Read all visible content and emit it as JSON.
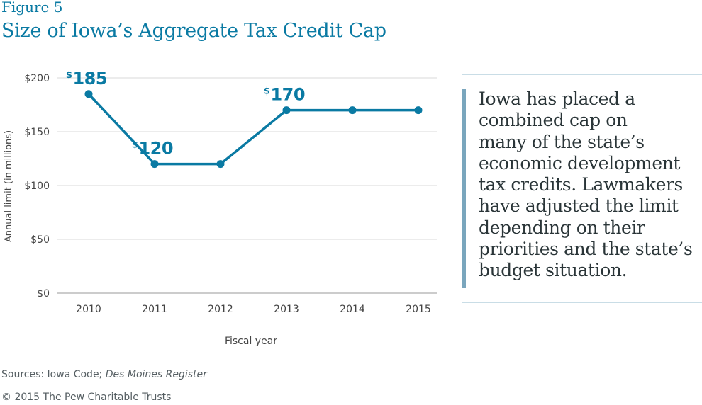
{
  "figure_label": "Figure 5",
  "title": "Size of Iowa’s Aggregate Tax Credit Cap",
  "callout_lines": [
    "Iowa has placed a",
    "combined cap on",
    "many of the state’s",
    "economic development",
    "tax credits. Lawmakers",
    "have adjusted the limit",
    "depending on their",
    "priorities and the state’s",
    "budget situation."
  ],
  "sources": {
    "prefix": "Sources: Iowa Code; ",
    "italic": "Des Moines Register"
  },
  "copyright": "© 2015 The Pew Charitable Trusts",
  "colors": {
    "line": "#0a7aa3",
    "title": "#0a7aa3",
    "axis": "#444444",
    "grid": "#d9d9d9",
    "callout_bar": "#7aa6bd"
  },
  "chart_data": {
    "type": "line",
    "title": "",
    "xlabel": "Fiscal year",
    "ylabel": "Annual limit (in millions)",
    "categories": [
      "2010",
      "2011",
      "2012",
      "2013",
      "2014",
      "2015"
    ],
    "series": [
      {
        "values": [
          185,
          120,
          120,
          170,
          170,
          170
        ]
      }
    ],
    "ylim": [
      0,
      200
    ],
    "yticks": [
      0,
      50,
      100,
      150,
      200
    ],
    "ytick_labels": [
      "$0",
      "$50",
      "$100",
      "$150",
      "$200"
    ],
    "grid": true,
    "annotations": [
      {
        "index": 0,
        "currency": "$",
        "value": "185"
      },
      {
        "index": 1,
        "currency": "$",
        "value": "120"
      },
      {
        "index": 3,
        "currency": "$",
        "value": "170"
      }
    ]
  }
}
